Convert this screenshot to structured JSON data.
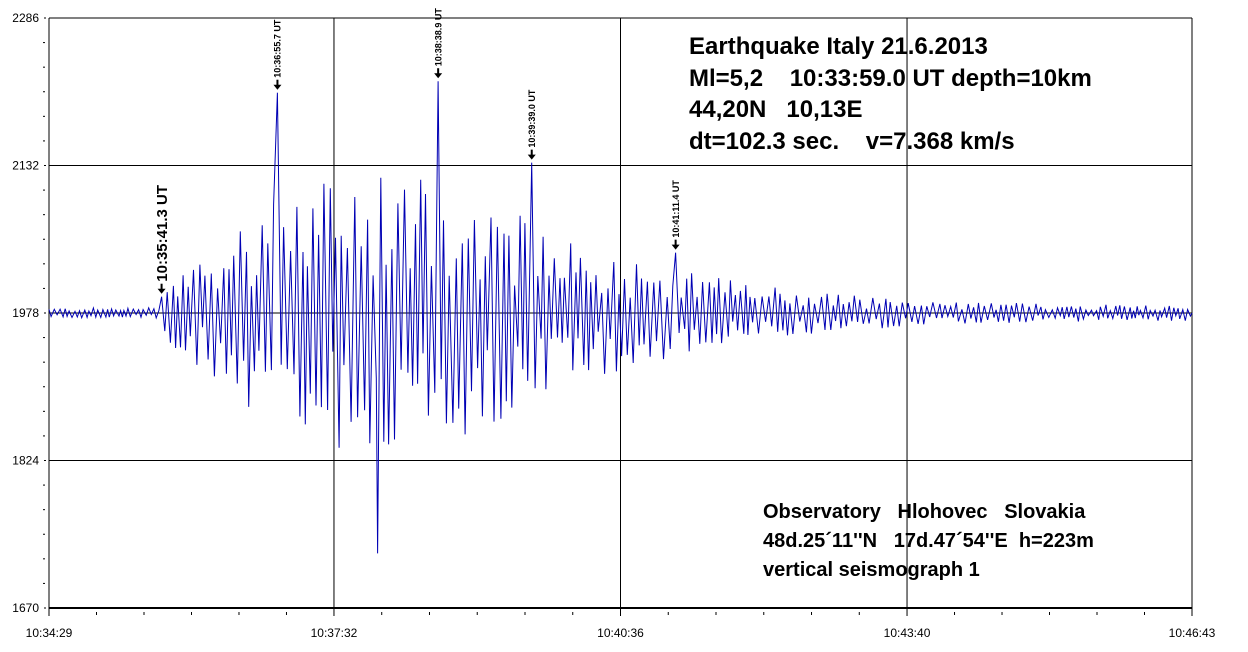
{
  "chart_data": {
    "type": "line",
    "title": "Earthquake Italy 21.6.2013",
    "info_lines": [
      "Earthquake Italy 21.6.2013",
      "Ml=5,2    10:33:59.0 UT depth=10km",
      "44,20N   10,13E",
      "dt=102.3 sec.    v=7.368 km/s"
    ],
    "station_lines": [
      "Observatory   Hlohovec   Slovakia",
      "48d.25´11''N   17d.47´54''E  h=223m",
      "vertical seismograph 1"
    ],
    "xlabel": "",
    "ylabel": "",
    "x_range_seconds": [
      0,
      734
    ],
    "x_start_time": "10:34:29",
    "x_ticks": [
      {
        "t": 0,
        "label": "10:34:29"
      },
      {
        "t": 183,
        "label": "10:37:32"
      },
      {
        "t": 367,
        "label": "10:40:36"
      },
      {
        "t": 551,
        "label": "10:43:40"
      },
      {
        "t": 734,
        "label": "10:46:43"
      }
    ],
    "ylim": [
      1670,
      2286
    ],
    "y_ticks": [
      {
        "v": 2286,
        "label": "2286"
      },
      {
        "v": 2132,
        "label": "2132"
      },
      {
        "v": 1978,
        "label": "1978"
      },
      {
        "v": 1824,
        "label": "1824"
      },
      {
        "v": 1670,
        "label": "1670"
      }
    ],
    "baseline": 1978,
    "grid": true,
    "series_color": "#0000b4",
    "envelope": [
      [
        0,
        5
      ],
      [
        72,
        6
      ],
      [
        74,
        30
      ],
      [
        100,
        60
      ],
      [
        130,
        110
      ],
      [
        160,
        140
      ],
      [
        240,
        150
      ],
      [
        280,
        120
      ],
      [
        330,
        80
      ],
      [
        380,
        55
      ],
      [
        420,
        40
      ],
      [
        480,
        25
      ],
      [
        560,
        12
      ],
      [
        734,
        8
      ]
    ],
    "peaks": [
      {
        "t": 72.3,
        "v": 1995
      },
      {
        "t": 146.7,
        "v": 2208
      },
      {
        "t": 211.0,
        "v": 1727
      },
      {
        "t": 249.9,
        "v": 2220
      },
      {
        "t": 310.0,
        "v": 2135
      },
      {
        "t": 402.4,
        "v": 2041
      }
    ],
    "annotations": [
      {
        "t": 72.3,
        "v": 1995,
        "label": "10:35:41.3 UT",
        "size": "large"
      },
      {
        "t": 146.7,
        "v": 2208,
        "label": "10:36:55.7 UT",
        "size": "small"
      },
      {
        "t": 249.9,
        "v": 2220,
        "label": "10:38:38.9 UT",
        "size": "small"
      },
      {
        "t": 310.0,
        "v": 2135,
        "label": "10:39:39.0 UT",
        "size": "small"
      },
      {
        "t": 402.4,
        "v": 2041,
        "label": "10:41:11.4 UT",
        "size": "small"
      }
    ]
  }
}
